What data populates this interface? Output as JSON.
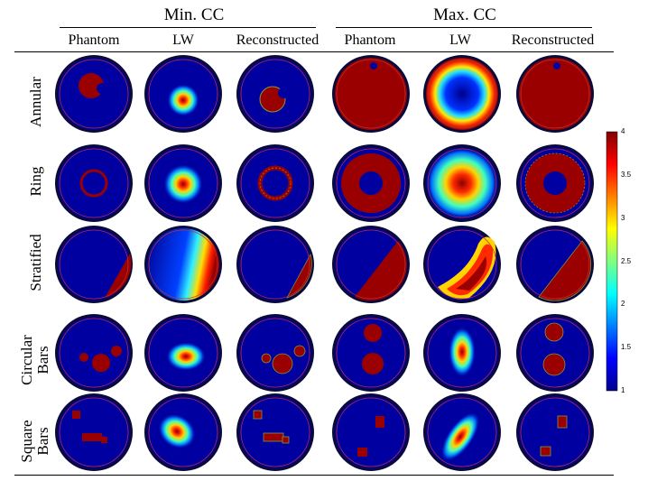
{
  "figure": {
    "groups": [
      {
        "label": "Min. CC"
      },
      {
        "label": "Max. CC"
      }
    ],
    "column_headers": [
      "Phantom",
      "LW",
      "Reconstructed",
      "Phantom",
      "LW",
      "Reconstructed"
    ],
    "rows": [
      {
        "label": "Annular",
        "lines": [
          "Annular"
        ]
      },
      {
        "label": "Ring",
        "lines": [
          "Ring"
        ]
      },
      {
        "label": "Stratified",
        "lines": [
          "Stratified"
        ]
      },
      {
        "label": "Circular Bars",
        "lines": [
          "Circular",
          "Bars"
        ]
      },
      {
        "label": "Square Bars",
        "lines": [
          "Square",
          "Bars"
        ]
      }
    ]
  },
  "colorbar": {
    "min": 1,
    "max": 4,
    "ticks": [
      "1",
      "1.5",
      "2",
      "2.5",
      "3",
      "3.5",
      "4"
    ],
    "colormap": "jet"
  },
  "colors": {
    "low": "#00008f",
    "high": "#8b0000",
    "electrode_ring": "#c03030"
  }
}
